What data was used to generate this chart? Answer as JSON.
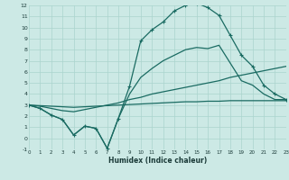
{
  "bg_color": "#cce9e5",
  "grid_color": "#aad4ce",
  "line_color": "#1a6b62",
  "xlabel": "Humidex (Indice chaleur)",
  "xlim": [
    0,
    23
  ],
  "ylim": [
    -1,
    12
  ],
  "figsize": [
    3.2,
    2.0
  ],
  "dpi": 100,
  "line1_x": [
    0,
    1,
    2,
    3,
    4,
    5,
    6,
    7,
    8,
    9,
    10,
    11,
    12,
    13,
    14,
    15,
    16,
    17,
    18,
    19,
    20,
    21,
    22,
    23
  ],
  "line1_y": [
    3.0,
    2.7,
    2.1,
    1.7,
    0.3,
    1.1,
    0.9,
    -0.9,
    1.8,
    4.7,
    8.8,
    9.8,
    10.5,
    11.5,
    12.0,
    12.2,
    11.8,
    11.1,
    9.3,
    7.5,
    6.5,
    4.8,
    4.0,
    3.5
  ],
  "line1_markers": true,
  "line2_x": [
    0,
    1,
    2,
    3,
    4,
    5,
    6,
    7,
    8,
    9,
    10,
    11,
    12,
    13,
    14,
    15,
    16,
    17,
    18,
    19,
    20,
    21,
    22,
    23
  ],
  "line2_y": [
    3.0,
    2.7,
    2.1,
    1.7,
    0.3,
    1.1,
    0.9,
    -0.9,
    1.8,
    4.0,
    5.5,
    6.3,
    7.0,
    7.5,
    8.0,
    8.2,
    8.1,
    8.4,
    6.8,
    5.2,
    4.8,
    4.0,
    3.5,
    3.5
  ],
  "line2_markers": false,
  "line3_x": [
    0,
    1,
    2,
    3,
    4,
    5,
    6,
    7,
    8,
    9,
    10,
    11,
    12,
    13,
    14,
    15,
    16,
    17,
    18,
    19,
    20,
    21,
    22,
    23
  ],
  "line3_y": [
    3.0,
    2.9,
    2.7,
    2.5,
    2.4,
    2.6,
    2.8,
    3.0,
    3.2,
    3.5,
    3.7,
    4.0,
    4.2,
    4.4,
    4.6,
    4.8,
    5.0,
    5.2,
    5.5,
    5.7,
    5.9,
    6.1,
    6.3,
    6.5
  ],
  "line3_markers": false,
  "line4_x": [
    0,
    1,
    2,
    3,
    4,
    5,
    6,
    7,
    8,
    9,
    10,
    11,
    12,
    13,
    14,
    15,
    16,
    17,
    18,
    19,
    20,
    21,
    22,
    23
  ],
  "line4_y": [
    3.0,
    2.95,
    2.9,
    2.85,
    2.8,
    2.85,
    2.9,
    2.95,
    3.0,
    3.05,
    3.1,
    3.15,
    3.2,
    3.25,
    3.3,
    3.3,
    3.35,
    3.35,
    3.4,
    3.4,
    3.4,
    3.4,
    3.4,
    3.4
  ],
  "line4_markers": false
}
